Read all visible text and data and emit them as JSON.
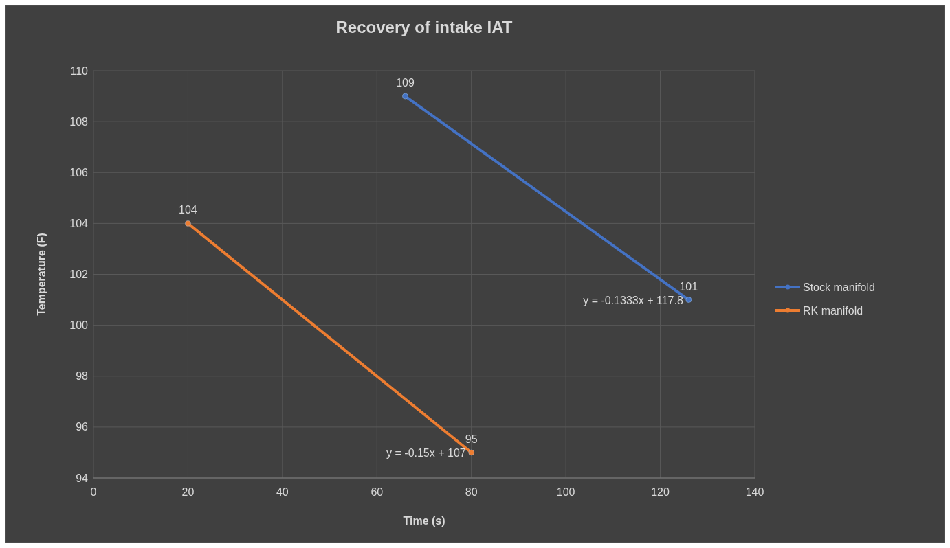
{
  "chart_data": {
    "type": "line",
    "title": "Recovery of intake IAT",
    "xlabel": "Time (s)",
    "ylabel": "Temperature (F)",
    "series": [
      {
        "name": "Stock manifold",
        "color": "#4472c4",
        "x": [
          66,
          126
        ],
        "values": [
          109,
          101
        ]
      },
      {
        "name": "RK manifold",
        "color": "#ed7d31",
        "x": [
          20,
          80
        ],
        "values": [
          104,
          95
        ]
      }
    ],
    "xlim": [
      0,
      140
    ],
    "xticks": [
      0,
      20,
      40,
      60,
      80,
      100,
      120,
      140
    ],
    "ylim": [
      94,
      110
    ],
    "yticks": [
      94,
      96,
      98,
      100,
      102,
      104,
      106,
      108,
      110
    ],
    "grid": true,
    "legend": "right",
    "marker": "circle",
    "line_style": "solid",
    "data_labels": true,
    "annotations": [
      {
        "text": "y = -0.1333x + 117.8",
        "x": 126,
        "y": 101
      },
      {
        "text": "y = -0.15x + 107",
        "x": 80,
        "y": 95
      }
    ]
  }
}
